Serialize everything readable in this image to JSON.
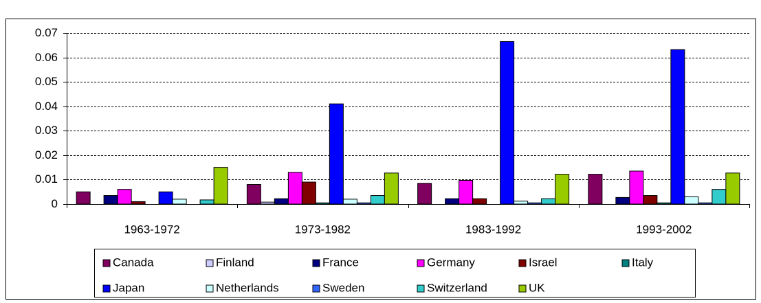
{
  "chart_data": {
    "type": "bar",
    "categories": [
      "1963-1972",
      "1973-1982",
      "1983-1992",
      "1993-2002"
    ],
    "series": [
      {
        "name": "Canada",
        "color": "#800060",
        "values": [
          0.005,
          0.008,
          0.0085,
          0.0122
        ]
      },
      {
        "name": "Finland",
        "color": "#ccccff",
        "values": [
          0,
          0.0008,
          0,
          0
        ]
      },
      {
        "name": "France",
        "color": "#000080",
        "values": [
          0.0035,
          0.0022,
          0.0022,
          0.0027
        ]
      },
      {
        "name": "Germany",
        "color": "#ff00ff",
        "values": [
          0.006,
          0.013,
          0.0097,
          0.0135
        ]
      },
      {
        "name": "Israel",
        "color": "#800000",
        "values": [
          0.001,
          0.009,
          0.0022,
          0.0035
        ]
      },
      {
        "name": "Italy",
        "color": "#008080",
        "values": [
          0,
          0.0005,
          0,
          0.0005
        ]
      },
      {
        "name": "Japan",
        "color": "#0000ff",
        "values": [
          0.005,
          0.041,
          0.0665,
          0.0632
        ]
      },
      {
        "name": "Netherlands",
        "color": "#ccffff",
        "values": [
          0.002,
          0.002,
          0.0012,
          0.003
        ]
      },
      {
        "name": "Sweden",
        "color": "#3366ff",
        "values": [
          0,
          0.0005,
          0.0005,
          0.0005
        ]
      },
      {
        "name": "Switzerland",
        "color": "#33cccc",
        "values": [
          0.0017,
          0.0035,
          0.0022,
          0.006
        ]
      },
      {
        "name": "UK",
        "color": "#99cc00",
        "values": [
          0.015,
          0.0127,
          0.0122,
          0.0127
        ]
      }
    ],
    "ylim": [
      0,
      0.07
    ],
    "yticks": [
      0,
      0.01,
      0.02,
      0.03,
      0.04,
      0.05,
      0.06,
      0.07
    ],
    "grid": true
  }
}
